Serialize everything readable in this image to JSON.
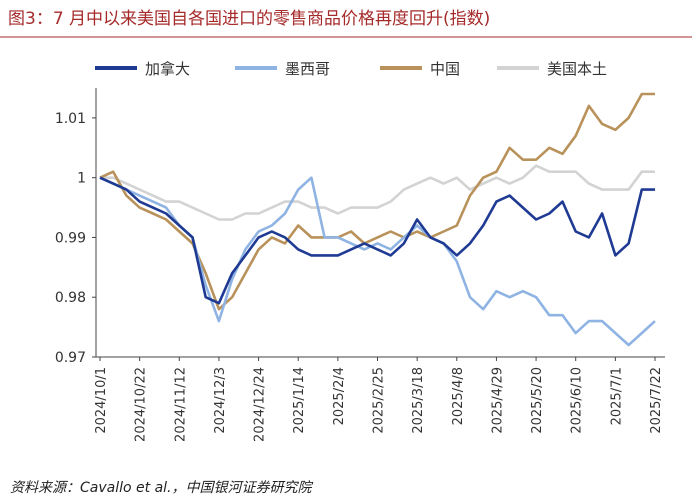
{
  "chart_data": {
    "type": "line",
    "title": "图3：7 月中以来美国自各国进口的零售商品价格再度回升(指数)",
    "source": "资料来源：Cavallo et al.，中国银河证券研究院",
    "categories": [
      "2024/10/1",
      null,
      null,
      "2024/10/22",
      null,
      null,
      "2024/11/12",
      null,
      null,
      "2024/12/3",
      null,
      null,
      "2024/12/24",
      null,
      null,
      "2025/1/14",
      null,
      null,
      "2025/2/4",
      null,
      null,
      "2025/2/25",
      null,
      null,
      "2025/3/18",
      null,
      null,
      "2025/4/8",
      null,
      null,
      "2025/4/29",
      null,
      null,
      "2025/5/20",
      null,
      null,
      "2025/6/10",
      null,
      null,
      "2025/7/1",
      null,
      null,
      "2025/7/22"
    ],
    "series": [
      {
        "name": "加拿大",
        "color": "#1f3a93",
        "values": [
          1.0,
          0.999,
          0.998,
          0.996,
          0.995,
          0.994,
          0.992,
          0.99,
          0.98,
          0.979,
          0.984,
          0.987,
          0.99,
          0.991,
          0.99,
          0.988,
          0.987,
          0.987,
          0.987,
          0.988,
          0.989,
          0.988,
          0.987,
          0.989,
          0.993,
          0.99,
          0.989,
          0.987,
          0.989,
          0.992,
          0.996,
          0.997,
          0.995,
          0.993,
          0.994,
          0.996,
          0.991,
          0.99,
          0.994,
          0.987,
          0.989,
          0.998,
          0.998
        ]
      },
      {
        "name": "墨西哥",
        "color": "#8fb4e3",
        "values": [
          1.0,
          0.999,
          0.998,
          0.997,
          0.996,
          0.995,
          0.992,
          0.99,
          0.982,
          0.976,
          0.983,
          0.988,
          0.991,
          0.992,
          0.994,
          0.998,
          1.0,
          0.99,
          0.99,
          0.989,
          0.988,
          0.989,
          0.988,
          0.99,
          0.992,
          0.99,
          0.989,
          0.986,
          0.98,
          0.978,
          0.981,
          0.98,
          0.981,
          0.98,
          0.977,
          0.977,
          0.974,
          0.976,
          0.976,
          0.974,
          0.972,
          0.974,
          0.976
        ]
      },
      {
        "name": "中国",
        "color": "#b8925a",
        "values": [
          1.0,
          1.001,
          0.997,
          0.995,
          0.994,
          0.993,
          0.991,
          0.989,
          0.984,
          0.978,
          0.98,
          0.984,
          0.988,
          0.99,
          0.989,
          0.992,
          0.99,
          0.99,
          0.99,
          0.991,
          0.989,
          0.99,
          0.991,
          0.99,
          0.991,
          0.99,
          0.991,
          0.992,
          0.997,
          1.0,
          1.001,
          1.005,
          1.003,
          1.003,
          1.005,
          1.004,
          1.007,
          1.012,
          1.009,
          1.008,
          1.01,
          1.014,
          1.014
        ]
      },
      {
        "name": "美国本土",
        "color": "#d3d3d3",
        "values": [
          1.0,
          1.0,
          0.999,
          0.998,
          0.997,
          0.996,
          0.996,
          0.995,
          0.994,
          0.993,
          0.993,
          0.994,
          0.994,
          0.995,
          0.996,
          0.996,
          0.995,
          0.995,
          0.994,
          0.995,
          0.995,
          0.995,
          0.996,
          0.998,
          0.999,
          1.0,
          0.999,
          1.0,
          0.998,
          0.999,
          1.0,
          0.999,
          1.0,
          1.002,
          1.001,
          1.001,
          1.001,
          0.999,
          0.998,
          0.998,
          0.998,
          1.001,
          1.001
        ]
      }
    ],
    "ylim": [
      0.97,
      1.015
    ],
    "yticks": [
      0.97,
      0.98,
      0.99,
      1,
      1.01
    ],
    "grid": false
  }
}
